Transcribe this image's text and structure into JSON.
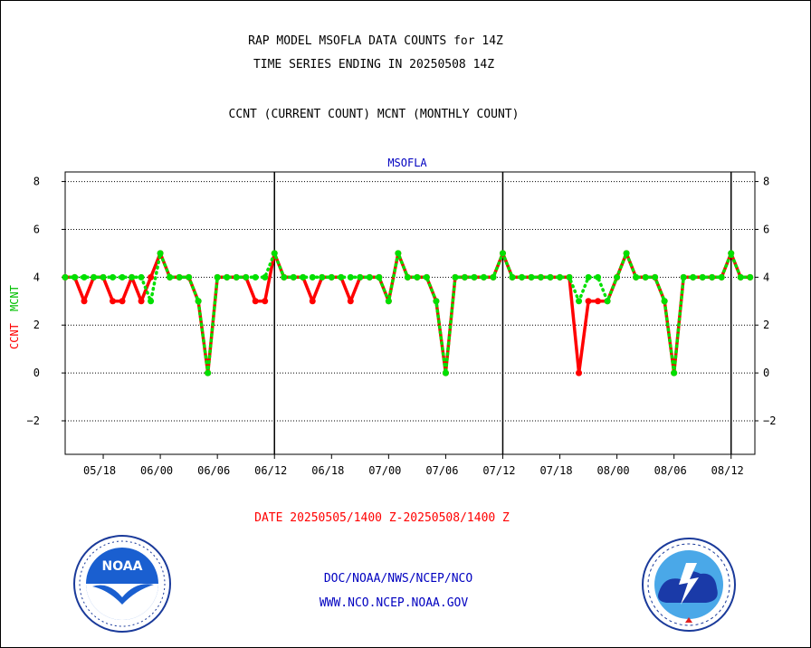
{
  "header": {
    "title_line1": "RAP MODEL MSOFLA DATA COUNTS for 14Z",
    "title_line2": "TIME SERIES ENDING IN 20250508 14Z",
    "subtitle": "CCNT (CURRENT COUNT) MCNT (MONTHLY COUNT)"
  },
  "footer": {
    "date_range": "DATE 20250505/1400 Z-20250508/1400 Z",
    "org_line": "DOC/NOAA/NWS/NCEP/NCO",
    "website": "WWW.NCO.NCEP.NOAA.GOV"
  },
  "colors": {
    "ccnt": "#ff0000",
    "mcnt": "#00e000",
    "text_blue": "#0000c0",
    "text_red": "#ff0000"
  },
  "logos": {
    "left": "noaa-logo",
    "right": "national-weather-service-logo"
  },
  "chart_data": {
    "type": "line",
    "title": "MSOFLA",
    "ylabel_ccnt": "CCNT",
    "ylabel_mcnt": "MCNT",
    "ylim": [
      -3.4,
      8.4
    ],
    "yticks": [
      -2,
      0,
      2,
      4,
      6,
      8
    ],
    "ytick_labels": [
      "−2",
      "0",
      "2",
      "4",
      "6",
      "8"
    ],
    "xlim": [
      0,
      72.5
    ],
    "xtick_positions": [
      4,
      10,
      16,
      22,
      28,
      34,
      40,
      46,
      52,
      58,
      64,
      70
    ],
    "xtick_labels": [
      "05/18",
      "06/00",
      "06/06",
      "06/12",
      "06/18",
      "07/00",
      "07/06",
      "07/12",
      "07/18",
      "08/00",
      "08/06",
      "08/12"
    ],
    "day_boundaries": [
      22,
      46,
      70
    ],
    "grid": true,
    "x": [
      0,
      1,
      2,
      3,
      4,
      5,
      6,
      7,
      8,
      9,
      10,
      11,
      12,
      13,
      14,
      15,
      16,
      17,
      18,
      19,
      20,
      21,
      22,
      23,
      24,
      25,
      26,
      27,
      28,
      29,
      30,
      31,
      32,
      33,
      34,
      35,
      36,
      37,
      38,
      39,
      40,
      41,
      42,
      43,
      44,
      45,
      46,
      47,
      48,
      49,
      50,
      51,
      52,
      53,
      54,
      55,
      56,
      57,
      58,
      59,
      60,
      61,
      62,
      63,
      64,
      65,
      66,
      67,
      68,
      69,
      70,
      71,
      72
    ],
    "series": [
      {
        "name": "CCNT",
        "values": [
          4,
          4,
          3,
          4,
          4,
          3,
          3,
          4,
          3,
          4,
          5,
          4,
          4,
          4,
          3,
          0,
          4,
          4,
          4,
          4,
          3,
          3,
          5,
          4,
          4,
          4,
          3,
          4,
          4,
          4,
          3,
          4,
          4,
          4,
          3,
          5,
          4,
          4,
          4,
          3,
          0,
          4,
          4,
          4,
          4,
          4,
          5,
          4,
          4,
          4,
          4,
          4,
          4,
          4,
          0,
          3,
          3,
          3,
          4,
          5,
          4,
          4,
          4,
          3,
          0,
          4,
          4,
          4,
          4,
          4,
          5,
          4,
          4
        ]
      },
      {
        "name": "MCNT",
        "values": [
          4,
          4,
          4,
          4,
          4,
          4,
          4,
          4,
          4,
          3,
          5,
          4,
          4,
          4,
          3,
          0,
          4,
          4,
          4,
          4,
          4,
          4,
          5,
          4,
          4,
          4,
          4,
          4,
          4,
          4,
          4,
          4,
          4,
          4,
          3,
          5,
          4,
          4,
          4,
          3,
          0,
          4,
          4,
          4,
          4,
          4,
          5,
          4,
          4,
          4,
          4,
          4,
          4,
          4,
          3,
          4,
          4,
          3,
          4,
          5,
          4,
          4,
          4,
          3,
          0,
          4,
          4,
          4,
          4,
          4,
          5,
          4,
          4
        ]
      }
    ]
  }
}
